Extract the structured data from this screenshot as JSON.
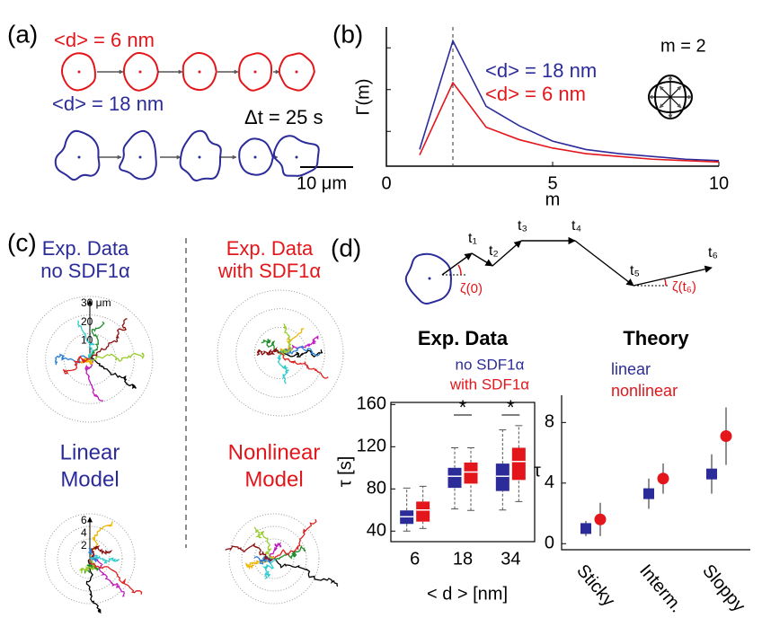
{
  "panel_labels": [
    "(a)",
    "(b)",
    "(c)",
    "(d)"
  ],
  "panel_a": {
    "label_small": "<d> = 6 nm",
    "label_large": "<d> = 18 nm",
    "interval": "Δt = 25 s",
    "scale_bar": "10 μm"
  },
  "panel_c": {
    "left_title": [
      "Exp. Data",
      "no SDF1α"
    ],
    "right_title": [
      "Exp. Data",
      "with SDF1α"
    ],
    "left_model": [
      "Linear",
      "Model"
    ],
    "right_model": [
      "Nonlinear",
      "Model"
    ],
    "top_rlim": [
      0,
      30
    ],
    "top_rticks": [
      10,
      20,
      {
        "value": 30,
        "label": "30 μm"
      }
    ],
    "bottom_rlim": [
      0,
      6
    ],
    "bottom_rticks": [
      2,
      4,
      6
    ]
  },
  "panel_d": {
    "times": [
      "t₁",
      "t₂",
      "t₃",
      "t₄",
      "t₅",
      "t₆"
    ],
    "angle_start": "ζ(0)",
    "angle_end": "ζ(t₆)"
  },
  "chart_data": [
    {
      "type": "line",
      "xlabel": "m",
      "ylabel": "Γ(m)",
      "annotation": "m = 2",
      "x": [
        1,
        2,
        3,
        4,
        5,
        6,
        7,
        8,
        9,
        10
      ],
      "series": [
        {
          "name": "<d> = 18 nm",
          "color": "#2b2b9a",
          "values": [
            0.12,
            0.9,
            0.43,
            0.29,
            0.18,
            0.12,
            0.09,
            0.07,
            0.05,
            0.04
          ]
        },
        {
          "name": "<d> = 6 nm",
          "color": "#e3161b",
          "values": [
            0.08,
            0.6,
            0.28,
            0.19,
            0.13,
            0.09,
            0.07,
            0.05,
            0.04,
            0.03
          ]
        }
      ],
      "xlim": [
        0,
        10
      ],
      "xticks": [
        0,
        5,
        10
      ],
      "ylim": [
        0,
        1
      ]
    },
    {
      "type": "box",
      "title": "Exp. Data",
      "xlabel": "< d > [nm]",
      "ylabel": "τ [s]",
      "categories": [
        "6",
        "18",
        "34"
      ],
      "annotations": [
        "*",
        "*"
      ],
      "series": [
        {
          "name": "no SDF1α",
          "color": "#2b2b9a",
          "whisker_low": [
            40,
            61,
            60
          ],
          "q1": [
            46.8,
            81,
            78
          ],
          "median": [
            53.6,
            92,
            92
          ],
          "q3": [
            59.6,
            100,
            104
          ],
          "whisker_high": [
            80.8,
            119,
            136
          ]
        },
        {
          "name": "with SDF1α",
          "color": "#e3161b",
          "whisker_low": [
            42.5,
            59.6,
            68
          ],
          "q1": [
            49,
            85,
            88.5
          ],
          "median": [
            60,
            96,
            106
          ],
          "q3": [
            68,
            105,
            119
          ],
          "whisker_high": [
            82.5,
            119,
            140
          ]
        }
      ],
      "ylim": [
        30,
        162
      ],
      "yticks": [
        40,
        80,
        120,
        160
      ]
    },
    {
      "type": "scatter",
      "title": "Theory",
      "ylabel": "τ",
      "categories": [
        "Sticky",
        "Interm.",
        "Sloppy"
      ],
      "series": [
        {
          "name": "linear",
          "color": "#2b2b9a",
          "marker": "square",
          "values": [
            1.0,
            3.3,
            4.6
          ],
          "errors": [
            0.5,
            1.0,
            1.3
          ]
        },
        {
          "name": "nonlinear",
          "color": "#e3161b",
          "marker": "circle",
          "values": [
            1.6,
            4.3,
            7.1
          ],
          "errors": [
            1.1,
            1.0,
            1.9
          ]
        }
      ],
      "ylim": [
        -0.4,
        9.8
      ],
      "yticks": [
        0,
        4,
        8
      ]
    }
  ]
}
